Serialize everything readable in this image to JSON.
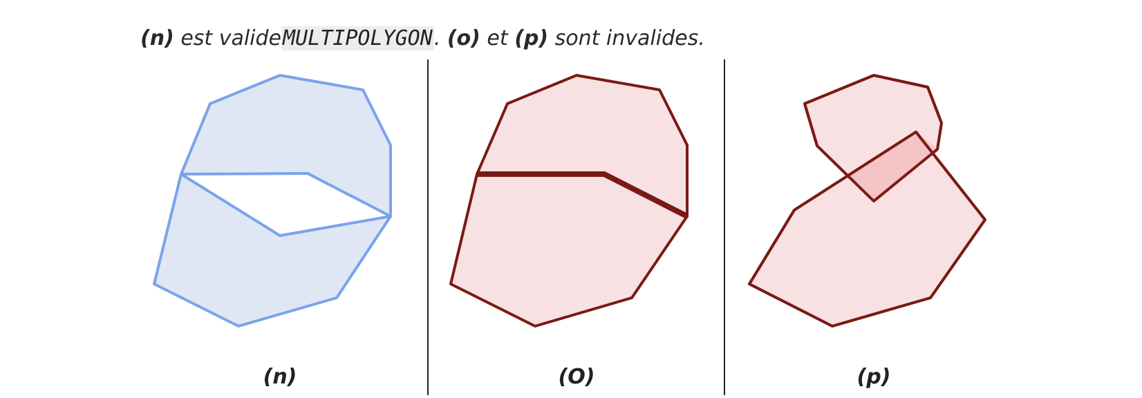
{
  "caption": {
    "n_label": "(n)",
    "text1": " est valide",
    "code": "MULTIPOLYGON",
    "text2": ". ",
    "o_label": "(o)",
    "text3": " et ",
    "p_label": "(p)",
    "text4": " sont invalides."
  },
  "panels": [
    {
      "label": "(n)"
    },
    {
      "label": "(O)"
    },
    {
      "label": "(p)"
    }
  ],
  "colors": {
    "valid_stroke": "#7aa3ea",
    "valid_fill": "#e0e7f4",
    "invalid_stroke": "#7a1a14",
    "invalid_fill": "#f8e1e2",
    "overlap_fill": "#f4c4c6",
    "divider": "#222222"
  }
}
